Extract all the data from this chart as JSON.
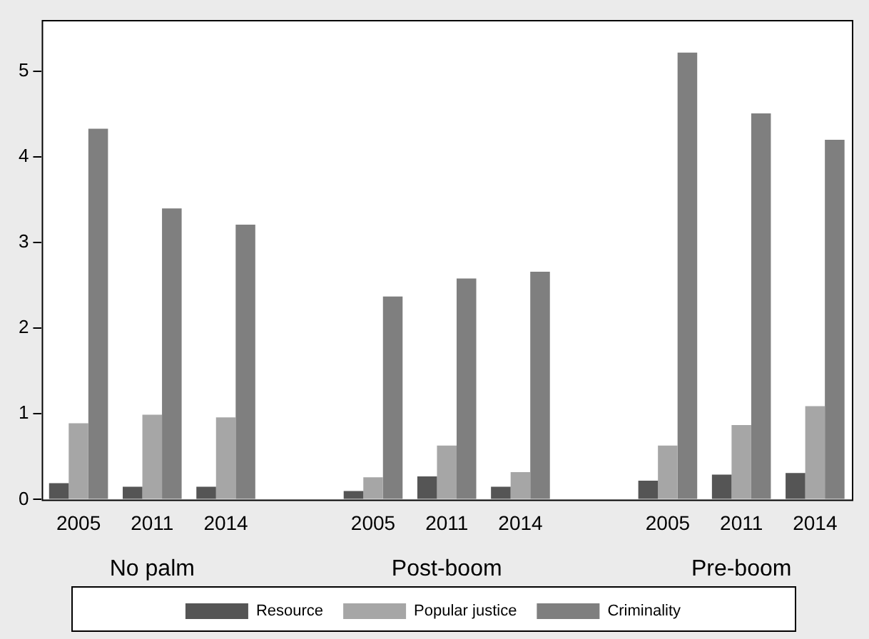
{
  "chart_data": {
    "type": "bar",
    "categories": [
      "2005",
      "2011",
      "2014",
      null,
      "2005",
      "2011",
      "2014",
      null,
      "2005",
      "2011",
      "2014"
    ],
    "series": [
      {
        "name": "Resource",
        "color": "#555555",
        "values": [
          0.19,
          0.15,
          0.15,
          null,
          0.1,
          0.27,
          0.15,
          null,
          0.22,
          0.29,
          0.31
        ]
      },
      {
        "name": "Popular justice",
        "color": "#a6a6a6",
        "values": [
          0.89,
          0.99,
          0.96,
          null,
          0.26,
          0.63,
          0.32,
          null,
          0.63,
          0.87,
          1.09
        ]
      },
      {
        "name": "Criminality",
        "color": "#7f7f7f",
        "values": [
          4.33,
          3.4,
          3.21,
          null,
          2.37,
          2.58,
          2.66,
          null,
          5.22,
          4.51,
          4.2
        ]
      }
    ],
    "annotations": [
      "No palm",
      "Post-boom",
      "Pre-boom"
    ],
    "ylim": [
      0,
      5.6
    ],
    "yticks": [
      0,
      1,
      2,
      3,
      4,
      5
    ],
    "grid": false,
    "legend": "bottom"
  }
}
